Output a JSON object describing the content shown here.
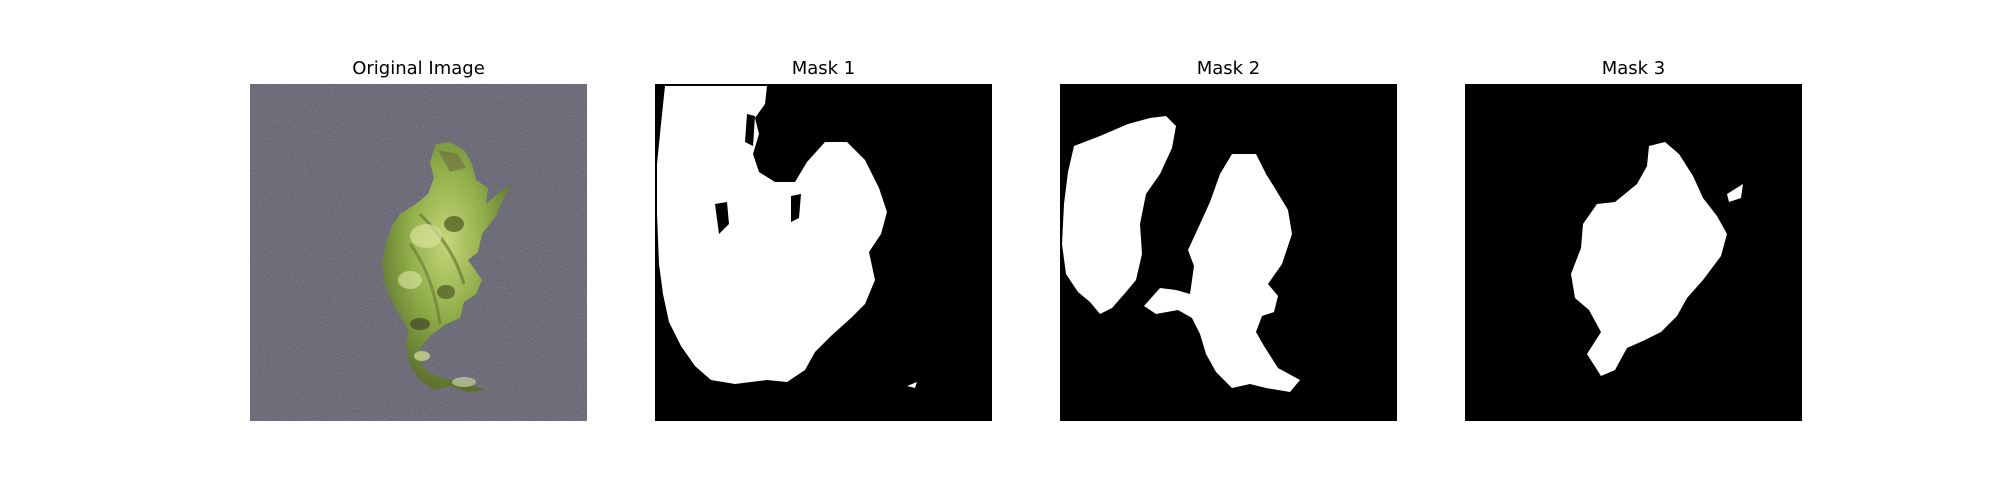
{
  "panels": [
    {
      "title": "Original Image",
      "kind": "photo",
      "subject": "leaf",
      "background_color": "#6b6b78"
    },
    {
      "title": "Mask 1",
      "kind": "mask",
      "fg_color": "#ffffff",
      "bg_color": "#000000"
    },
    {
      "title": "Mask 2",
      "kind": "mask",
      "fg_color": "#ffffff",
      "bg_color": "#000000"
    },
    {
      "title": "Mask 3",
      "kind": "mask",
      "fg_color": "#ffffff",
      "bg_color": "#000000"
    }
  ]
}
